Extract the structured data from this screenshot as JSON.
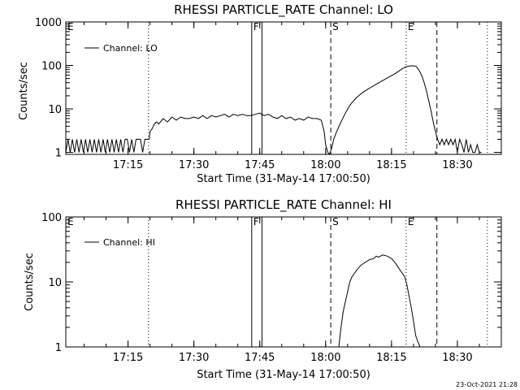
{
  "chart_data": [
    {
      "type": "line",
      "title": "RHESSI PARTICLE_RATE Channel: LO",
      "xlabel": "Start Time (31-May-14 17:00:50)",
      "ylabel": "Counts/sec",
      "xlim": [
        "17:00:50",
        "18:40:00"
      ],
      "ylim": [
        0.9,
        1000
      ],
      "yscale": "log",
      "x_ticks": [
        "17:15",
        "17:30",
        "17:45",
        "18:00",
        "18:15",
        "18:30"
      ],
      "y_ticks": [
        "1",
        "10",
        "100",
        "1000"
      ],
      "grid": false,
      "legend": {
        "placement": "top-left",
        "entries": [
          "Channel: LO"
        ]
      },
      "markers": [
        {
          "label": "E",
          "time": "17:00:50",
          "style": "solid"
        },
        {
          "label": "",
          "time": "17:19:40",
          "style": "dotted"
        },
        {
          "label": "F",
          "time": "17:43:10",
          "style": "solid"
        },
        {
          "label": "",
          "time": "17:45:30",
          "style": "solid"
        },
        {
          "label": "S",
          "time": "18:01:10",
          "style": "dashed"
        },
        {
          "label": "E",
          "time": "18:18:20",
          "style": "dotted"
        },
        {
          "label": "",
          "time": "18:25:20",
          "style": "dashed"
        },
        {
          "label": "",
          "time": "18:36:50",
          "style": "dotted"
        }
      ],
      "series": [
        {
          "name": "Channel: LO",
          "points": [
            [
              "17:00:50",
              1
            ],
            [
              "17:01:20",
              2
            ],
            [
              "17:01:50",
              1
            ],
            [
              "17:02:20",
              2
            ],
            [
              "17:02:50",
              1
            ],
            [
              "17:03:20",
              2
            ],
            [
              "17:03:50",
              1
            ],
            [
              "17:04:20",
              2
            ],
            [
              "17:04:50",
              1
            ],
            [
              "17:05:20",
              2
            ],
            [
              "17:05:50",
              1
            ],
            [
              "17:06:20",
              2
            ],
            [
              "17:06:50",
              1
            ],
            [
              "17:07:20",
              2
            ],
            [
              "17:07:50",
              1
            ],
            [
              "17:08:20",
              2
            ],
            [
              "17:08:50",
              1
            ],
            [
              "17:09:20",
              2
            ],
            [
              "17:09:50",
              1
            ],
            [
              "17:10:20",
              2
            ],
            [
              "17:10:50",
              1
            ],
            [
              "17:11:20",
              2
            ],
            [
              "17:11:50",
              1
            ],
            [
              "17:12:20",
              2
            ],
            [
              "17:12:50",
              1
            ],
            [
              "17:13:20",
              2
            ],
            [
              "17:13:50",
              1
            ],
            [
              "17:14:20",
              2
            ],
            [
              "17:14:50",
              2
            ],
            [
              "17:15:20",
              1
            ],
            [
              "17:15:50",
              2
            ],
            [
              "17:16:20",
              1
            ],
            [
              "17:16:50",
              2
            ],
            [
              "17:17:20",
              2
            ],
            [
              "17:17:50",
              2
            ],
            [
              "17:18:20",
              1
            ],
            [
              "17:18:50",
              2
            ],
            [
              "17:19:20",
              2
            ],
            [
              "17:19:50",
              2
            ],
            [
              "17:20:00",
              3
            ],
            [
              "17:20:30",
              3.5
            ],
            [
              "17:21:00",
              4.5
            ],
            [
              "17:21:30",
              5
            ],
            [
              "17:22:00",
              4.5
            ],
            [
              "17:23:00",
              6
            ],
            [
              "17:24:00",
              5
            ],
            [
              "17:25:00",
              6.5
            ],
            [
              "17:26:00",
              5.5
            ],
            [
              "17:27:00",
              6.5
            ],
            [
              "17:28:00",
              6
            ],
            [
              "17:29:00",
              6
            ],
            [
              "17:30:00",
              6.5
            ],
            [
              "17:31:00",
              6
            ],
            [
              "17:32:00",
              7
            ],
            [
              "17:33:00",
              6
            ],
            [
              "17:34:00",
              7
            ],
            [
              "17:35:00",
              6.5
            ],
            [
              "17:36:00",
              7
            ],
            [
              "17:37:00",
              7.5
            ],
            [
              "17:38:00",
              6.5
            ],
            [
              "17:39:00",
              7.5
            ],
            [
              "17:40:00",
              7
            ],
            [
              "17:41:00",
              7.5
            ],
            [
              "17:42:00",
              7
            ],
            [
              "17:43:00",
              7
            ],
            [
              "17:44:00",
              7.5
            ],
            [
              "17:45:00",
              8
            ],
            [
              "17:46:00",
              7
            ],
            [
              "17:47:00",
              7.5
            ],
            [
              "17:48:00",
              6.5
            ],
            [
              "17:49:00",
              6
            ],
            [
              "17:50:00",
              7
            ],
            [
              "17:51:00",
              6
            ],
            [
              "17:52:00",
              6.5
            ],
            [
              "17:53:00",
              5.5
            ],
            [
              "17:54:00",
              6
            ],
            [
              "17:55:00",
              5.5
            ],
            [
              "17:56:00",
              6.5
            ],
            [
              "17:57:00",
              6
            ],
            [
              "17:58:00",
              6
            ],
            [
              "17:59:00",
              5.5
            ],
            [
              "17:59:40",
              3
            ],
            [
              "18:00:00",
              1.5
            ],
            [
              "18:00:30",
              1
            ],
            [
              "18:00:50",
              0.9
            ],
            [
              "18:01:20",
              1.2
            ],
            [
              "18:01:50",
              2
            ],
            [
              "18:02:30",
              3
            ],
            [
              "18:03:30",
              5
            ],
            [
              "18:04:30",
              8
            ],
            [
              "18:05:30",
              12
            ],
            [
              "18:06:30",
              16
            ],
            [
              "18:07:30",
              20
            ],
            [
              "18:08:30",
              24
            ],
            [
              "18:09:30",
              28
            ],
            [
              "18:10:30",
              32
            ],
            [
              "18:11:30",
              37
            ],
            [
              "18:12:30",
              42
            ],
            [
              "18:13:30",
              48
            ],
            [
              "18:14:30",
              55
            ],
            [
              "18:15:30",
              62
            ],
            [
              "18:16:30",
              72
            ],
            [
              "18:17:30",
              85
            ],
            [
              "18:18:30",
              95
            ],
            [
              "18:19:30",
              98
            ],
            [
              "18:20:30",
              97
            ],
            [
              "18:21:00",
              85
            ],
            [
              "18:21:30",
              70
            ],
            [
              "18:22:00",
              55
            ],
            [
              "18:22:30",
              38
            ],
            [
              "18:23:00",
              25
            ],
            [
              "18:23:30",
              15
            ],
            [
              "18:24:00",
              9
            ],
            [
              "18:24:30",
              5
            ],
            [
              "18:25:00",
              3
            ],
            [
              "18:25:30",
              2
            ],
            [
              "18:26:00",
              1.5
            ],
            [
              "18:26:30",
              2
            ],
            [
              "18:27:00",
              1.5
            ],
            [
              "18:27:30",
              2
            ],
            [
              "18:28:00",
              1.5
            ],
            [
              "18:28:30",
              2
            ],
            [
              "18:29:00",
              1.5
            ],
            [
              "18:29:30",
              2
            ],
            [
              "18:30:00",
              1
            ],
            [
              "18:30:30",
              2
            ],
            [
              "18:31:00",
              1.5
            ],
            [
              "18:31:30",
              1
            ],
            [
              "18:32:00",
              2
            ],
            [
              "18:32:30",
              1
            ],
            [
              "18:33:00",
              1.5
            ],
            [
              "18:33:30",
              1
            ],
            [
              "18:34:00",
              1
            ],
            [
              "18:34:30",
              1.5
            ],
            [
              "18:35:00",
              1
            ],
            [
              "18:35:30",
              1
            ]
          ]
        }
      ]
    },
    {
      "type": "line",
      "title": "RHESSI PARTICLE_RATE Channel: HI",
      "xlabel": "Start Time (31-May-14 17:00:50)",
      "ylabel": "Counts/sec",
      "xlim": [
        "17:00:50",
        "18:40:00"
      ],
      "ylim": [
        1,
        100
      ],
      "yscale": "log",
      "x_ticks": [
        "17:15",
        "17:30",
        "17:45",
        "18:00",
        "18:15",
        "18:30"
      ],
      "y_ticks": [
        "1",
        "10",
        "100"
      ],
      "grid": false,
      "legend": {
        "placement": "top-left",
        "entries": [
          "Channel: HI"
        ]
      },
      "markers": [
        {
          "label": "E",
          "time": "17:00:50",
          "style": "solid"
        },
        {
          "label": "",
          "time": "17:19:40",
          "style": "dotted"
        },
        {
          "label": "F",
          "time": "17:43:10",
          "style": "solid"
        },
        {
          "label": "",
          "time": "17:45:30",
          "style": "solid"
        },
        {
          "label": "S",
          "time": "18:01:10",
          "style": "dashed"
        },
        {
          "label": "E",
          "time": "18:18:20",
          "style": "dotted"
        },
        {
          "label": "",
          "time": "18:25:20",
          "style": "dashed"
        },
        {
          "label": "",
          "time": "18:36:50",
          "style": "dotted"
        }
      ],
      "series": [
        {
          "name": "Channel: HI",
          "points": [
            [
              "18:03:00",
              1
            ],
            [
              "18:03:30",
              2
            ],
            [
              "18:04:00",
              3.5
            ],
            [
              "18:04:30",
              5
            ],
            [
              "18:05:00",
              7
            ],
            [
              "18:05:30",
              10
            ],
            [
              "18:06:00",
              12
            ],
            [
              "18:07:00",
              15
            ],
            [
              "18:08:00",
              18
            ],
            [
              "18:09:00",
              20
            ],
            [
              "18:10:00",
              22
            ],
            [
              "18:11:00",
              23
            ],
            [
              "18:11:30",
              25
            ],
            [
              "18:12:00",
              24
            ],
            [
              "18:13:00",
              26
            ],
            [
              "18:14:00",
              25
            ],
            [
              "18:15:00",
              23
            ],
            [
              "18:16:00",
              19
            ],
            [
              "18:17:00",
              15
            ],
            [
              "18:18:00",
              12
            ],
            [
              "18:18:30",
              9
            ],
            [
              "18:19:00",
              6
            ],
            [
              "18:19:30",
              4
            ],
            [
              "18:20:00",
              2.5
            ],
            [
              "18:20:30",
              1.5
            ],
            [
              "18:21:00",
              1.2
            ],
            [
              "18:21:30",
              1
            ]
          ]
        }
      ]
    }
  ],
  "footer": {
    "stamp": "23-Oct-2021 21:28"
  }
}
